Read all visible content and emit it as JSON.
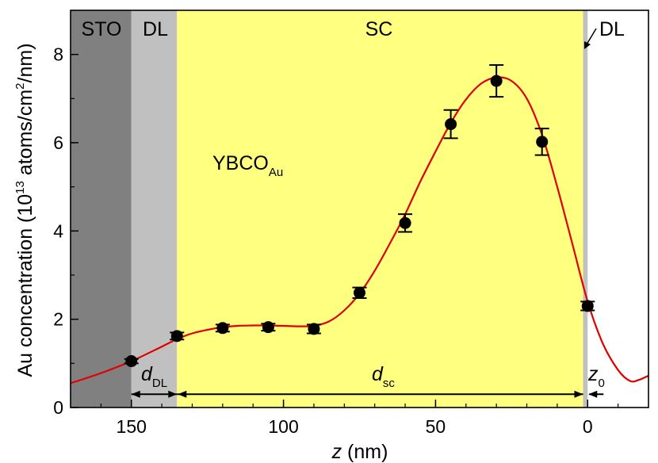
{
  "chart_data": {
    "type": "scatter",
    "x_axis": {
      "label_var": "z",
      "label_unit": " (nm)",
      "lim": [
        170,
        -20
      ],
      "reversed": true,
      "ticks": [
        150,
        100,
        50,
        0
      ],
      "tick_labels": [
        "150",
        "100",
        "50",
        "0"
      ],
      "minor_step": 10
    },
    "y_axis": {
      "label_pre": "Au concentration (10",
      "label_exp1": "13",
      "label_mid": " atoms/cm",
      "label_exp2": "2",
      "label_post": "/nm)",
      "lim": [
        0,
        9
      ],
      "ticks": [
        0,
        2,
        4,
        6,
        8
      ],
      "tick_labels": [
        "0",
        "2",
        "4",
        "6",
        "8"
      ],
      "minor_step": 1
    },
    "regions": [
      {
        "name": "STO",
        "x_from": 170,
        "x_to": 150,
        "color": "#808080"
      },
      {
        "name": "DL",
        "x_from": 150,
        "x_to": 135,
        "color": "#c0c0c0"
      },
      {
        "name": "SC",
        "x_from": 135,
        "x_to": 1.5,
        "color": "#ffff80"
      },
      {
        "name": "DL",
        "x_from": 1.5,
        "x_to": 0,
        "color": "#c0c0c0"
      }
    ],
    "points": {
      "name": "YBCO",
      "name_sub": "Au",
      "x": [
        150,
        135,
        120,
        105,
        90,
        75,
        60,
        45,
        30,
        15,
        0
      ],
      "y": [
        1.05,
        1.62,
        1.8,
        1.82,
        1.78,
        2.6,
        4.18,
        6.42,
        7.4,
        6.02,
        2.3
      ],
      "err": [
        0.05,
        0.08,
        0.08,
        0.08,
        0.1,
        0.12,
        0.2,
        0.32,
        0.36,
        0.3,
        0.1
      ]
    },
    "fit_curve": {
      "color": "#e00000",
      "x": [
        170,
        160,
        150,
        140,
        135,
        130,
        125,
        120,
        115,
        110,
        105,
        100,
        95,
        90,
        85,
        80,
        75,
        70,
        65,
        60,
        55,
        50,
        45,
        40,
        35,
        30,
        25,
        20,
        15,
        10,
        5,
        0,
        -5,
        -10,
        -14,
        -17,
        -20
      ],
      "y": [
        0.55,
        0.78,
        1.05,
        1.38,
        1.55,
        1.68,
        1.76,
        1.82,
        1.85,
        1.86,
        1.86,
        1.85,
        1.84,
        1.85,
        1.95,
        2.2,
        2.58,
        3.1,
        3.72,
        4.38,
        5.12,
        5.8,
        6.45,
        6.98,
        7.34,
        7.48,
        7.4,
        7.0,
        6.18,
        5.0,
        3.7,
        2.4,
        1.45,
        0.85,
        0.6,
        0.63,
        0.72
      ]
    },
    "annotations": {
      "d_dl_var": "d",
      "d_dl_sub": "DL",
      "d_sc_var": "d",
      "d_sc_sub": "sc",
      "z0_var": "z",
      "z0_sub": "0",
      "arrow_y": 0.3
    }
  }
}
